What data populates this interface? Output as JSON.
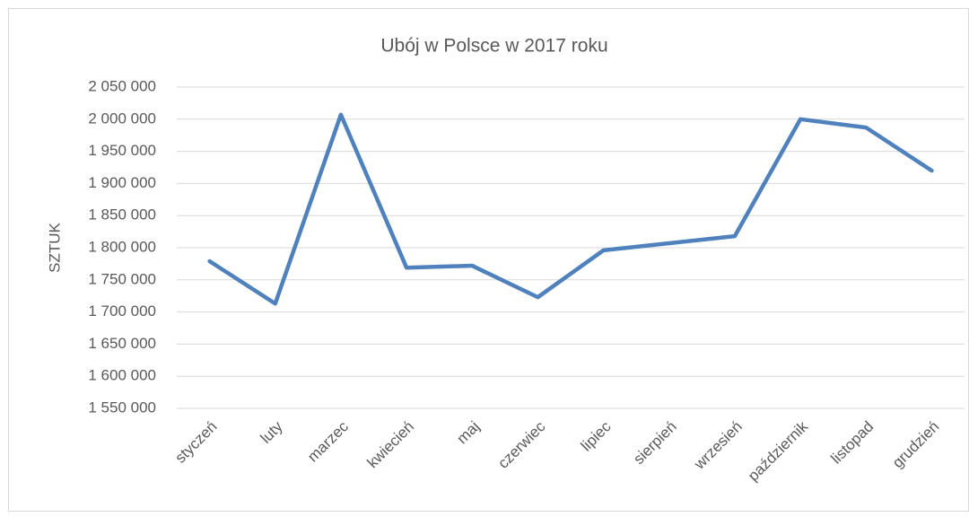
{
  "chart_data": {
    "type": "line",
    "title": "Ubój w Polsce w  2017 roku",
    "y_label": "SZTUK",
    "categories": [
      "styczeń",
      "luty",
      "marzec",
      "kwiecień",
      "maj",
      "czerwiec",
      "lipiec",
      "sierpień",
      "wrzesień",
      "październik",
      "listopad",
      "grudzień"
    ],
    "series": [
      {
        "name": "Ubój",
        "color": "#4f81bd",
        "values": [
          1779000,
          1713000,
          2007000,
          1769000,
          1772000,
          1723000,
          1796000,
          1807000,
          1818000,
          2000000,
          1987000,
          1920000
        ]
      }
    ],
    "ylim": [
      1550000,
      2050000
    ],
    "yticks": [
      {
        "value": 1550000,
        "label": "1 550 000"
      },
      {
        "value": 1600000,
        "label": "1 600 000"
      },
      {
        "value": 1650000,
        "label": "1 650 000"
      },
      {
        "value": 1700000,
        "label": "1 700 000"
      },
      {
        "value": 1750000,
        "label": "1 750 000"
      },
      {
        "value": 1800000,
        "label": "1 800 000"
      },
      {
        "value": 1850000,
        "label": "1 850 000"
      },
      {
        "value": 1900000,
        "label": "1 900 000"
      },
      {
        "value": 1950000,
        "label": "1 950 000"
      },
      {
        "value": 2000000,
        "label": "2 000 000"
      },
      {
        "value": 2050000,
        "label": "2 050 000"
      }
    ],
    "grid": true
  }
}
